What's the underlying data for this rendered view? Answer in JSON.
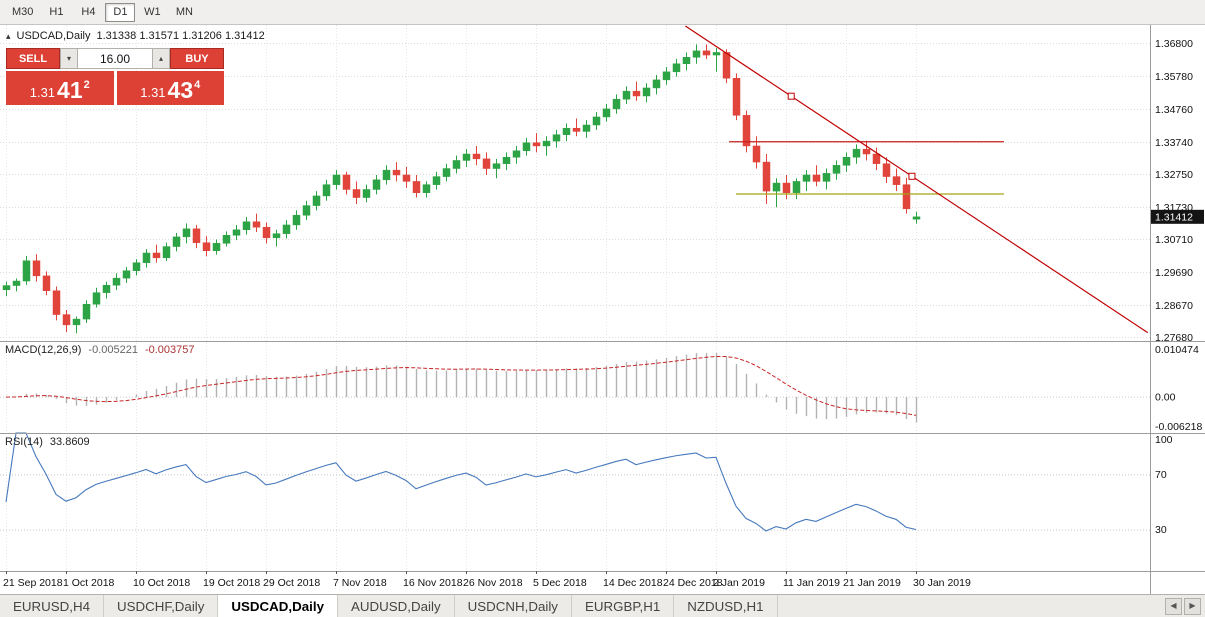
{
  "colors": {
    "accent_red": "#dd4136",
    "candle_up": "#2ca344",
    "candle_down": "#e0443a",
    "trend_red": "#c00000",
    "hline_red": "#c81e1e",
    "hline_olive": "#a3a314",
    "macd_hist": "#b2b2b2",
    "macd_signal": "#c92727",
    "rsi_line": "#4679bd",
    "grid": "#dddddd",
    "pane_border": "#9c9c9c",
    "badge_bg": "#141414"
  },
  "toolbar": {
    "timeframes": [
      {
        "label": "M30",
        "active": false
      },
      {
        "label": "H1",
        "active": false
      },
      {
        "label": "H4",
        "active": false
      },
      {
        "label": "D1",
        "active": true
      },
      {
        "label": "W1",
        "active": false
      },
      {
        "label": "MN",
        "active": false
      }
    ]
  },
  "symbol_row": {
    "toggle_icon": "▴",
    "symbol": "USDCAD,Daily",
    "ohlc": "1.31338 1.31571 1.31206 1.31412"
  },
  "trade_panel": {
    "sell_label": "SELL",
    "buy_label": "BUY",
    "volume": "16.00",
    "spinner_down": "▾",
    "spinner_up": "▴",
    "sell_price": {
      "prefix": "1.31",
      "big": "41",
      "sup": "2"
    },
    "buy_price": {
      "prefix": "1.31",
      "big": "43",
      "sup": "4"
    }
  },
  "price_scale": {
    "ticks": [
      "1.36800",
      "1.35780",
      "1.34760",
      "1.33740",
      "1.32750",
      "1.31730",
      "1.30710",
      "1.29690",
      "1.28670",
      "1.27680"
    ],
    "current": "1.31412"
  },
  "macd_panel": {
    "title": "MACD(12,26,9)",
    "value_main": "-0.005221",
    "value_signal": "-0.003757",
    "scale_top": "0.010474",
    "scale_zero": "0.00",
    "scale_bottom": "-0.006218"
  },
  "rsi_panel": {
    "title": "RSI(14)",
    "value": "33.8609",
    "scale": [
      "100",
      "70",
      "30"
    ]
  },
  "tabs": [
    {
      "label": "EURUSD,H4",
      "active": false
    },
    {
      "label": "USDCHF,Daily",
      "active": false
    },
    {
      "label": "USDCAD,Daily",
      "active": true
    },
    {
      "label": "AUDUSD,Daily",
      "active": false
    },
    {
      "label": "USDCNH,Daily",
      "active": false
    },
    {
      "label": "EURGBP,H1",
      "active": false
    },
    {
      "label": "NZDUSD,H1",
      "active": false
    }
  ],
  "tab_scroll": {
    "left": "◀",
    "right": "▶"
  },
  "chart_data": {
    "type": "candlestick",
    "symbol": "USDCAD",
    "timeframe": "Daily",
    "current_ohlc": {
      "open": 1.31338,
      "high": 1.31571,
      "low": 1.31206,
      "close": 1.31412
    },
    "price_range": [
      1.2756,
      1.373
    ],
    "date_ticks": [
      {
        "label": "21 Sep 2018",
        "index": 0
      },
      {
        "label": "1 Oct 2018",
        "index": 6
      },
      {
        "label": "10 Oct 2018",
        "index": 13
      },
      {
        "label": "19 Oct 2018",
        "index": 20
      },
      {
        "label": "29 Oct 2018",
        "index": 26
      },
      {
        "label": "7 Nov 2018",
        "index": 33
      },
      {
        "label": "16 Nov 2018",
        "index": 40
      },
      {
        "label": "26 Nov 2018",
        "index": 46
      },
      {
        "label": "5 Dec 2018",
        "index": 53
      },
      {
        "label": "14 Dec 2018",
        "index": 60
      },
      {
        "label": "24 Dec 2018",
        "index": 66
      },
      {
        "label": "2 Jan 2019",
        "index": 71
      },
      {
        "label": "11 Jan 2019",
        "index": 78
      },
      {
        "label": "21 Jan 2019",
        "index": 84
      },
      {
        "label": "30 Jan 2019",
        "index": 91
      }
    ],
    "candles": [
      [
        1.2915,
        1.294,
        1.2895,
        1.2928
      ],
      [
        1.2928,
        1.295,
        1.291,
        1.2942
      ],
      [
        1.2942,
        1.302,
        1.293,
        1.3005
      ],
      [
        1.3005,
        1.3025,
        1.294,
        1.2958
      ],
      [
        1.2958,
        1.2972,
        1.2898,
        1.2912
      ],
      [
        1.2912,
        1.2925,
        1.282,
        1.2838
      ],
      [
        1.2838,
        1.2852,
        1.2783,
        1.2806
      ],
      [
        1.2806,
        1.2832,
        1.278,
        1.2824
      ],
      [
        1.2824,
        1.2882,
        1.2812,
        1.287
      ],
      [
        1.287,
        1.2921,
        1.286,
        1.2906
      ],
      [
        1.2906,
        1.294,
        1.2888,
        1.2929
      ],
      [
        1.2929,
        1.2966,
        1.2914,
        1.2951
      ],
      [
        1.2951,
        1.2986,
        1.2936,
        1.2974
      ],
      [
        1.2974,
        1.301,
        1.2959,
        1.2999
      ],
      [
        1.2999,
        1.3041,
        1.2984,
        1.3029
      ],
      [
        1.3029,
        1.3055,
        1.2999,
        1.3014
      ],
      [
        1.3014,
        1.3061,
        1.3004,
        1.3049
      ],
      [
        1.3049,
        1.3091,
        1.3034,
        1.3079
      ],
      [
        1.3079,
        1.3121,
        1.3059,
        1.3104
      ],
      [
        1.3104,
        1.3116,
        1.3044,
        1.3061
      ],
      [
        1.3061,
        1.3081,
        1.3019,
        1.3036
      ],
      [
        1.3036,
        1.3071,
        1.3024,
        1.3059
      ],
      [
        1.3059,
        1.3096,
        1.3049,
        1.3084
      ],
      [
        1.3084,
        1.3116,
        1.3069,
        1.3101
      ],
      [
        1.3101,
        1.3141,
        1.3086,
        1.3126
      ],
      [
        1.3126,
        1.3151,
        1.3094,
        1.3109
      ],
      [
        1.3109,
        1.3124,
        1.3059,
        1.3076
      ],
      [
        1.3076,
        1.3101,
        1.3049,
        1.3089
      ],
      [
        1.3089,
        1.3131,
        1.3074,
        1.3116
      ],
      [
        1.3116,
        1.3161,
        1.3101,
        1.3146
      ],
      [
        1.3146,
        1.3191,
        1.3131,
        1.3176
      ],
      [
        1.3176,
        1.3221,
        1.3161,
        1.3206
      ],
      [
        1.3206,
        1.3256,
        1.3191,
        1.3241
      ],
      [
        1.3241,
        1.3286,
        1.3226,
        1.3271
      ],
      [
        1.3271,
        1.3281,
        1.3211,
        1.3226
      ],
      [
        1.3226,
        1.3251,
        1.3181,
        1.3201
      ],
      [
        1.3201,
        1.3241,
        1.3186,
        1.3226
      ],
      [
        1.3226,
        1.3271,
        1.3211,
        1.3256
      ],
      [
        1.3256,
        1.3301,
        1.3241,
        1.3286
      ],
      [
        1.3286,
        1.3311,
        1.3251,
        1.3271
      ],
      [
        1.3271,
        1.3296,
        1.3231,
        1.3251
      ],
      [
        1.3251,
        1.3271,
        1.3201,
        1.3216
      ],
      [
        1.3216,
        1.3251,
        1.3201,
        1.3241
      ],
      [
        1.3241,
        1.3281,
        1.3226,
        1.3266
      ],
      [
        1.3266,
        1.3306,
        1.3251,
        1.3291
      ],
      [
        1.3291,
        1.3331,
        1.3276,
        1.3316
      ],
      [
        1.3316,
        1.3351,
        1.3296,
        1.3336
      ],
      [
        1.3336,
        1.3361,
        1.3301,
        1.3321
      ],
      [
        1.3321,
        1.3341,
        1.3271,
        1.3291
      ],
      [
        1.3291,
        1.3321,
        1.3261,
        1.3306
      ],
      [
        1.3306,
        1.3341,
        1.3286,
        1.3326
      ],
      [
        1.3326,
        1.3361,
        1.3306,
        1.3346
      ],
      [
        1.3346,
        1.3386,
        1.3331,
        1.3371
      ],
      [
        1.3371,
        1.3401,
        1.3341,
        1.3361
      ],
      [
        1.3361,
        1.3391,
        1.3331,
        1.3376
      ],
      [
        1.3376,
        1.3411,
        1.3356,
        1.3396
      ],
      [
        1.3396,
        1.3431,
        1.3376,
        1.3416
      ],
      [
        1.3416,
        1.3446,
        1.3391,
        1.3406
      ],
      [
        1.3406,
        1.3441,
        1.3386,
        1.3426
      ],
      [
        1.3426,
        1.3466,
        1.3411,
        1.3451
      ],
      [
        1.3451,
        1.3491,
        1.3436,
        1.3476
      ],
      [
        1.3476,
        1.3521,
        1.3461,
        1.3506
      ],
      [
        1.3506,
        1.3546,
        1.3491,
        1.3531
      ],
      [
        1.3531,
        1.3561,
        1.3501,
        1.3516
      ],
      [
        1.3516,
        1.3556,
        1.3496,
        1.3541
      ],
      [
        1.3541,
        1.3581,
        1.3521,
        1.3566
      ],
      [
        1.3566,
        1.3606,
        1.3551,
        1.3591
      ],
      [
        1.3591,
        1.3631,
        1.3576,
        1.3616
      ],
      [
        1.3616,
        1.3651,
        1.3596,
        1.3636
      ],
      [
        1.3636,
        1.3676,
        1.3616,
        1.3656
      ],
      [
        1.3656,
        1.3676,
        1.3631,
        1.3643
      ],
      [
        1.3643,
        1.3665,
        1.3591,
        1.3651
      ],
      [
        1.3651,
        1.3661,
        1.3556,
        1.3571
      ],
      [
        1.3571,
        1.3586,
        1.3441,
        1.3456
      ],
      [
        1.3456,
        1.3471,
        1.3341,
        1.3361
      ],
      [
        1.3361,
        1.3391,
        1.3291,
        1.3311
      ],
      [
        1.3311,
        1.3336,
        1.3181,
        1.3221
      ],
      [
        1.3221,
        1.3261,
        1.3171,
        1.3246
      ],
      [
        1.3246,
        1.3271,
        1.3196,
        1.3216
      ],
      [
        1.3216,
        1.3261,
        1.3196,
        1.3251
      ],
      [
        1.3251,
        1.3286,
        1.3221,
        1.3271
      ],
      [
        1.3271,
        1.3301,
        1.3236,
        1.3251
      ],
      [
        1.3251,
        1.3291,
        1.3226,
        1.3276
      ],
      [
        1.3276,
        1.3316,
        1.3256,
        1.3301
      ],
      [
        1.3301,
        1.3341,
        1.3281,
        1.3326
      ],
      [
        1.3326,
        1.3366,
        1.3306,
        1.3351
      ],
      [
        1.3351,
        1.3377,
        1.3316,
        1.3336
      ],
      [
        1.3336,
        1.3356,
        1.3286,
        1.3306
      ],
      [
        1.3306,
        1.3326,
        1.3246,
        1.3266
      ],
      [
        1.3266,
        1.3291,
        1.3221,
        1.3241
      ],
      [
        1.3241,
        1.3262,
        1.3151,
        1.3166
      ],
      [
        1.31338,
        1.31571,
        1.31206,
        1.31412
      ]
    ],
    "objects": {
      "trendline": {
        "price1": 1.3733,
        "x1_frac": 0.596,
        "price2": 1.2782,
        "x2_frac": 0.998,
        "handle_fracs": [
          0.688,
          0.793
        ]
      },
      "hlines": [
        {
          "price": 1.3374,
          "x1_frac": 0.634,
          "x2_frac": 0.873,
          "color_key": "hline_red"
        },
        {
          "price": 1.3212,
          "x1_frac": 0.64,
          "x2_frac": 0.873,
          "color_key": "hline_olive"
        }
      ]
    },
    "indicators": {
      "macd": {
        "fast": 12,
        "slow": 26,
        "signal": 9,
        "current_main": -0.005221,
        "current_signal": -0.003757
      },
      "rsi": {
        "period": 14,
        "current": 33.8609,
        "levels": [
          70,
          30
        ]
      }
    }
  }
}
